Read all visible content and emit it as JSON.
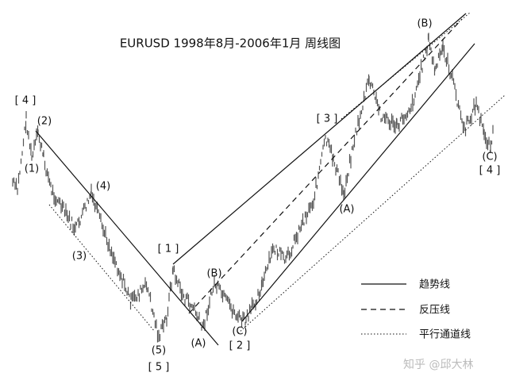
{
  "title": "EURUSD  1998年8月-2006年1月  周线图",
  "wave_labels": [
    "[ 4 ]",
    "(2)",
    "(1)",
    "(4)",
    "(3)",
    "[ 1 ]",
    "(B)",
    "(5)",
    "[ 5 ]",
    "(A)",
    "(C)",
    "[ 2 ]",
    "[ 3 ]",
    "(A)",
    "(B)",
    "(C)",
    "[ 4 ]"
  ],
  "legend": [
    "趋势线",
    "反压线",
    "平行通道线"
  ],
  "watermark": "知乎 @邱大林"
}
